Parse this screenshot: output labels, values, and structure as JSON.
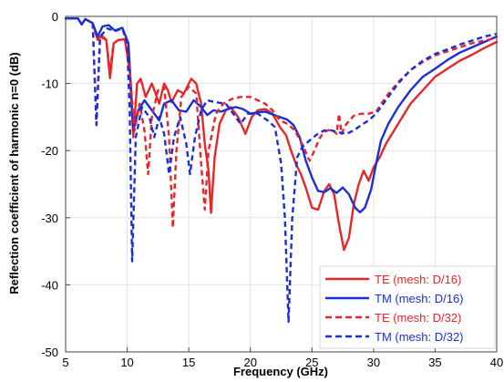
{
  "chart_data": {
    "type": "line",
    "title": "",
    "xlabel": "Frequency (GHz)",
    "ylabel": "Reflection coefficient of harmonic n=0 (dB)",
    "xlim": [
      5,
      40
    ],
    "ylim": [
      -50,
      0
    ],
    "xticks": [
      5,
      10,
      15,
      20,
      25,
      30,
      35,
      40
    ],
    "yticks": [
      0,
      -10,
      -20,
      -30,
      -40,
      -50
    ],
    "grid": true,
    "legend_position": "bottom-right",
    "series": [
      {
        "name": "TE (mesh: D/16)",
        "color": "#e8262a",
        "dash": "solid",
        "points": [
          [
            5,
            -0.3
          ],
          [
            6,
            -0.3
          ],
          [
            6.3,
            -1.2
          ],
          [
            6.6,
            -0.4
          ],
          [
            7.2,
            -1.0
          ],
          [
            7.6,
            -3.5
          ],
          [
            7.9,
            -2.8
          ],
          [
            8.3,
            -3.5
          ],
          [
            8.6,
            -9.2
          ],
          [
            8.9,
            -4
          ],
          [
            9.3,
            -3.5
          ],
          [
            9.8,
            -3.4
          ],
          [
            10.2,
            -8
          ],
          [
            10.5,
            -18
          ],
          [
            10.8,
            -10
          ],
          [
            11.1,
            -9.3
          ],
          [
            11.5,
            -12
          ],
          [
            12,
            -10
          ],
          [
            12.6,
            -13
          ],
          [
            13,
            -10
          ],
          [
            13.3,
            -11
          ],
          [
            13.6,
            -12.8
          ],
          [
            14.1,
            -11
          ],
          [
            14.6,
            -11.5
          ],
          [
            15.2,
            -9.3
          ],
          [
            15.6,
            -10
          ],
          [
            16,
            -13
          ],
          [
            16.3,
            -19
          ],
          [
            16.6,
            -23
          ],
          [
            16.8,
            -29.3
          ],
          [
            17.1,
            -21
          ],
          [
            17.5,
            -16
          ],
          [
            18,
            -14
          ],
          [
            18.4,
            -13.5
          ],
          [
            19,
            -15
          ],
          [
            19.6,
            -17.5
          ],
          [
            20.1,
            -15
          ],
          [
            20.6,
            -14
          ],
          [
            21.2,
            -13.8
          ],
          [
            21.8,
            -14.5
          ],
          [
            22.4,
            -16.5
          ],
          [
            22.9,
            -17.7
          ],
          [
            23.3,
            -20
          ],
          [
            23.7,
            -22
          ],
          [
            24.1,
            -23.5
          ],
          [
            24.5,
            -25.5
          ],
          [
            25,
            -28.5
          ],
          [
            25.5,
            -28.8
          ],
          [
            26,
            -26
          ],
          [
            26.4,
            -25
          ],
          [
            26.8,
            -26.5
          ],
          [
            27.2,
            -31
          ],
          [
            27.6,
            -34.8
          ],
          [
            28,
            -33
          ],
          [
            28.4,
            -28
          ],
          [
            28.8,
            -25
          ],
          [
            29.2,
            -23
          ],
          [
            29.6,
            -24.5
          ],
          [
            30,
            -22.5
          ],
          [
            30.5,
            -21
          ],
          [
            31,
            -19
          ],
          [
            32,
            -16
          ],
          [
            33,
            -13
          ],
          [
            34,
            -11
          ],
          [
            35,
            -9
          ],
          [
            36,
            -7.8
          ],
          [
            37,
            -6.6
          ],
          [
            38,
            -5.7
          ],
          [
            39,
            -4.7
          ],
          [
            40,
            -3.8
          ]
        ]
      },
      {
        "name": "TM (mesh: D/16)",
        "color": "#1b2fd6",
        "dash": "solid",
        "points": [
          [
            5,
            -0.3
          ],
          [
            6,
            -0.3
          ],
          [
            6.3,
            -1.2
          ],
          [
            6.6,
            -0.4
          ],
          [
            7.2,
            -1.0
          ],
          [
            7.6,
            -3.0
          ],
          [
            8,
            -1.5
          ],
          [
            8.5,
            -1.3
          ],
          [
            9,
            -2.1
          ],
          [
            9.6,
            -1.7
          ],
          [
            10.1,
            -4
          ],
          [
            10.5,
            -17
          ],
          [
            10.9,
            -14
          ],
          [
            11.4,
            -12.5
          ],
          [
            12,
            -14
          ],
          [
            12.6,
            -15.5
          ],
          [
            13,
            -13
          ],
          [
            13.6,
            -12.5
          ],
          [
            14.2,
            -14
          ],
          [
            14.8,
            -14.2
          ],
          [
            15.4,
            -12.5
          ],
          [
            16,
            -13.5
          ],
          [
            16.5,
            -14.7
          ],
          [
            17,
            -14
          ],
          [
            17.6,
            -14.2
          ],
          [
            18.2,
            -13.8
          ],
          [
            18.8,
            -13.5
          ],
          [
            19.4,
            -13.8
          ],
          [
            20,
            -14.5
          ],
          [
            20.6,
            -14.3
          ],
          [
            21.2,
            -14.2
          ],
          [
            21.8,
            -14.6
          ],
          [
            22.4,
            -15
          ],
          [
            23,
            -15.4
          ],
          [
            23.5,
            -16.2
          ],
          [
            24,
            -18
          ],
          [
            24.5,
            -21.5
          ],
          [
            25,
            -24
          ],
          [
            25.5,
            -26
          ],
          [
            26,
            -26.2
          ],
          [
            26.5,
            -25.6
          ],
          [
            27,
            -26.3
          ],
          [
            27.5,
            -25.5
          ],
          [
            28,
            -26.5
          ],
          [
            28.5,
            -28.5
          ],
          [
            28.9,
            -29.2
          ],
          [
            29.3,
            -28.5
          ],
          [
            29.8,
            -25.8
          ],
          [
            30.2,
            -22
          ],
          [
            30.6,
            -18.5
          ],
          [
            31.2,
            -16
          ],
          [
            32,
            -13.5
          ],
          [
            33,
            -11
          ],
          [
            34,
            -9
          ],
          [
            35,
            -7.8
          ],
          [
            36,
            -6.5
          ],
          [
            37,
            -5.4
          ],
          [
            38,
            -4.6
          ],
          [
            39,
            -3.8
          ],
          [
            40,
            -3.0
          ]
        ]
      },
      {
        "name": "TE (mesh: D/32)",
        "color": "#e8262a",
        "dash": "dashed",
        "points": [
          [
            7.2,
            -1.0
          ],
          [
            7.5,
            -16.2
          ],
          [
            7.8,
            -3
          ],
          [
            8.3,
            -3.5
          ],
          [
            8.6,
            -8
          ],
          [
            8.9,
            -4
          ],
          [
            9.3,
            -3.5
          ],
          [
            9.8,
            -3.4
          ],
          [
            10.2,
            -8
          ],
          [
            10.6,
            -17
          ],
          [
            11,
            -13
          ],
          [
            11.4,
            -17
          ],
          [
            11.7,
            -23.5
          ],
          [
            12,
            -15
          ],
          [
            12.5,
            -11
          ],
          [
            13,
            -10.5
          ],
          [
            13.4,
            -18
          ],
          [
            13.7,
            -31.5
          ],
          [
            14,
            -20
          ],
          [
            14.4,
            -12
          ],
          [
            15,
            -10.5
          ],
          [
            15.6,
            -11.5
          ],
          [
            16,
            -22
          ],
          [
            16.3,
            -28.8
          ],
          [
            16.6,
            -20
          ],
          [
            17.2,
            -14.5
          ],
          [
            17.8,
            -13
          ],
          [
            18.5,
            -12.3
          ],
          [
            19.2,
            -12
          ],
          [
            20,
            -12
          ],
          [
            20.6,
            -12.5
          ],
          [
            21.2,
            -13
          ],
          [
            21.8,
            -14
          ],
          [
            22.4,
            -15.5
          ],
          [
            23,
            -16
          ],
          [
            23.6,
            -17
          ],
          [
            24.2,
            -19
          ],
          [
            24.8,
            -21.5
          ],
          [
            25.2,
            -20
          ],
          [
            25.6,
            -18.2
          ],
          [
            26,
            -17.2
          ],
          [
            26.6,
            -16.8
          ],
          [
            27,
            -17.5
          ],
          [
            27.2,
            -14.5
          ],
          [
            27.4,
            -17.5
          ],
          [
            27.8,
            -16
          ],
          [
            28.4,
            -14.8
          ],
          [
            29,
            -14.5
          ],
          [
            29.6,
            -14.5
          ],
          [
            30.2,
            -14.2
          ],
          [
            31,
            -12
          ],
          [
            32,
            -9.8
          ],
          [
            33,
            -8
          ],
          [
            34,
            -6.8
          ],
          [
            35,
            -5.8
          ],
          [
            36,
            -5.2
          ],
          [
            37,
            -4.6
          ],
          [
            38,
            -4
          ],
          [
            39,
            -3.6
          ],
          [
            40,
            -3.2
          ]
        ]
      },
      {
        "name": "TM (mesh: D/32)",
        "color": "#1b2fd6",
        "dash": "dashed",
        "points": [
          [
            7.2,
            -1.0
          ],
          [
            7.5,
            -16.2
          ],
          [
            7.8,
            -3
          ],
          [
            8.4,
            -1.8
          ],
          [
            9,
            -2.2
          ],
          [
            9.6,
            -1.8
          ],
          [
            10,
            -4
          ],
          [
            10.2,
            -14
          ],
          [
            10.4,
            -36.5
          ],
          [
            10.7,
            -18
          ],
          [
            11.2,
            -13.5
          ],
          [
            11.8,
            -15
          ],
          [
            12.2,
            -18
          ],
          [
            12.6,
            -15
          ],
          [
            13,
            -17.5
          ],
          [
            13.4,
            -23.5
          ],
          [
            13.8,
            -18
          ],
          [
            14.3,
            -15
          ],
          [
            14.8,
            -19
          ],
          [
            15.1,
            -23.5
          ],
          [
            15.5,
            -18
          ],
          [
            16,
            -14
          ],
          [
            16.5,
            -12.5
          ],
          [
            17.2,
            -12.8
          ],
          [
            18,
            -13
          ],
          [
            18.6,
            -14.5
          ],
          [
            19.2,
            -16
          ],
          [
            19.8,
            -14.5
          ],
          [
            20.6,
            -14.5
          ],
          [
            21.4,
            -15.5
          ],
          [
            22,
            -16.5
          ],
          [
            22.5,
            -22
          ],
          [
            22.8,
            -30
          ],
          [
            23.1,
            -45.5
          ],
          [
            23.4,
            -30
          ],
          [
            23.8,
            -21
          ],
          [
            24.2,
            -19.5
          ],
          [
            24.8,
            -18.5
          ],
          [
            25.4,
            -17.6
          ],
          [
            26,
            -17
          ],
          [
            26.6,
            -17
          ],
          [
            27.2,
            -17.3
          ],
          [
            27.8,
            -17.5
          ],
          [
            28.4,
            -17
          ],
          [
            29,
            -16.2
          ],
          [
            29.6,
            -15.5
          ],
          [
            30.2,
            -14.5
          ],
          [
            31,
            -12.5
          ],
          [
            32,
            -10
          ],
          [
            33,
            -8
          ],
          [
            34,
            -6.6
          ],
          [
            35,
            -5.6
          ],
          [
            36,
            -4.9
          ],
          [
            37,
            -4.2
          ],
          [
            38,
            -3.6
          ],
          [
            39,
            -3.0
          ],
          [
            40,
            -2.6
          ]
        ]
      }
    ]
  }
}
